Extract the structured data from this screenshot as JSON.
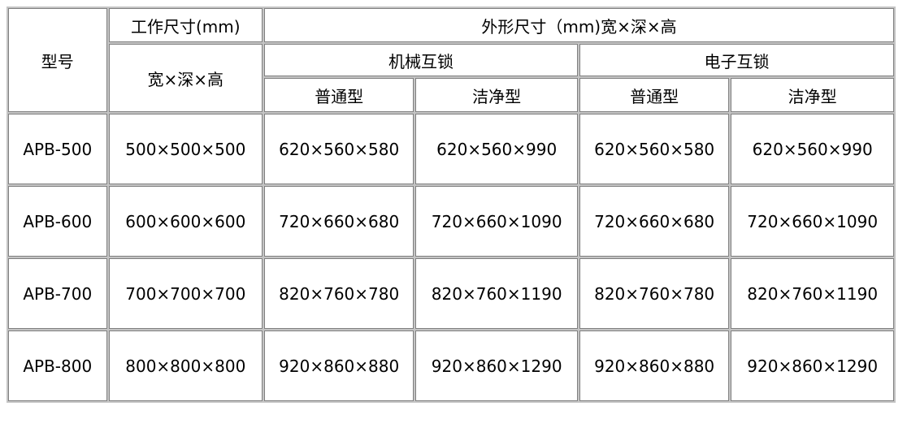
{
  "header": {
    "model": "型号",
    "work_size": "工作尺寸(mm)",
    "work_dims": "宽×深×高",
    "outer_size": "外形尺寸（mm)宽×深×高",
    "mechanical": "机械互锁",
    "electronic": "电子互锁",
    "mech_normal": "普通型",
    "mech_clean": "洁净型",
    "elec_normal": "普通型",
    "elec_clean": "洁净型"
  },
  "rows": [
    {
      "model": "APB-500",
      "work": "500×500×500",
      "mech_normal": "620×560×580",
      "mech_clean": "620×560×990",
      "elec_normal": "620×560×580",
      "elec_clean": "620×560×990"
    },
    {
      "model": "APB-600",
      "work": "600×600×600",
      "mech_normal": "720×660×680",
      "mech_clean": "720×660×1090",
      "elec_normal": "720×660×680",
      "elec_clean": "720×660×1090"
    },
    {
      "model": "APB-700",
      "work": "700×700×700",
      "mech_normal": "820×760×780",
      "mech_clean": "820×760×1190",
      "elec_normal": "820×760×780",
      "elec_clean": "820×760×1190"
    },
    {
      "model": "APB-800",
      "work": "800×800×800",
      "mech_normal": "920×860×880",
      "mech_clean": "920×860×1290",
      "elec_normal": "920×860×880",
      "elec_clean": "920×860×1290"
    }
  ]
}
